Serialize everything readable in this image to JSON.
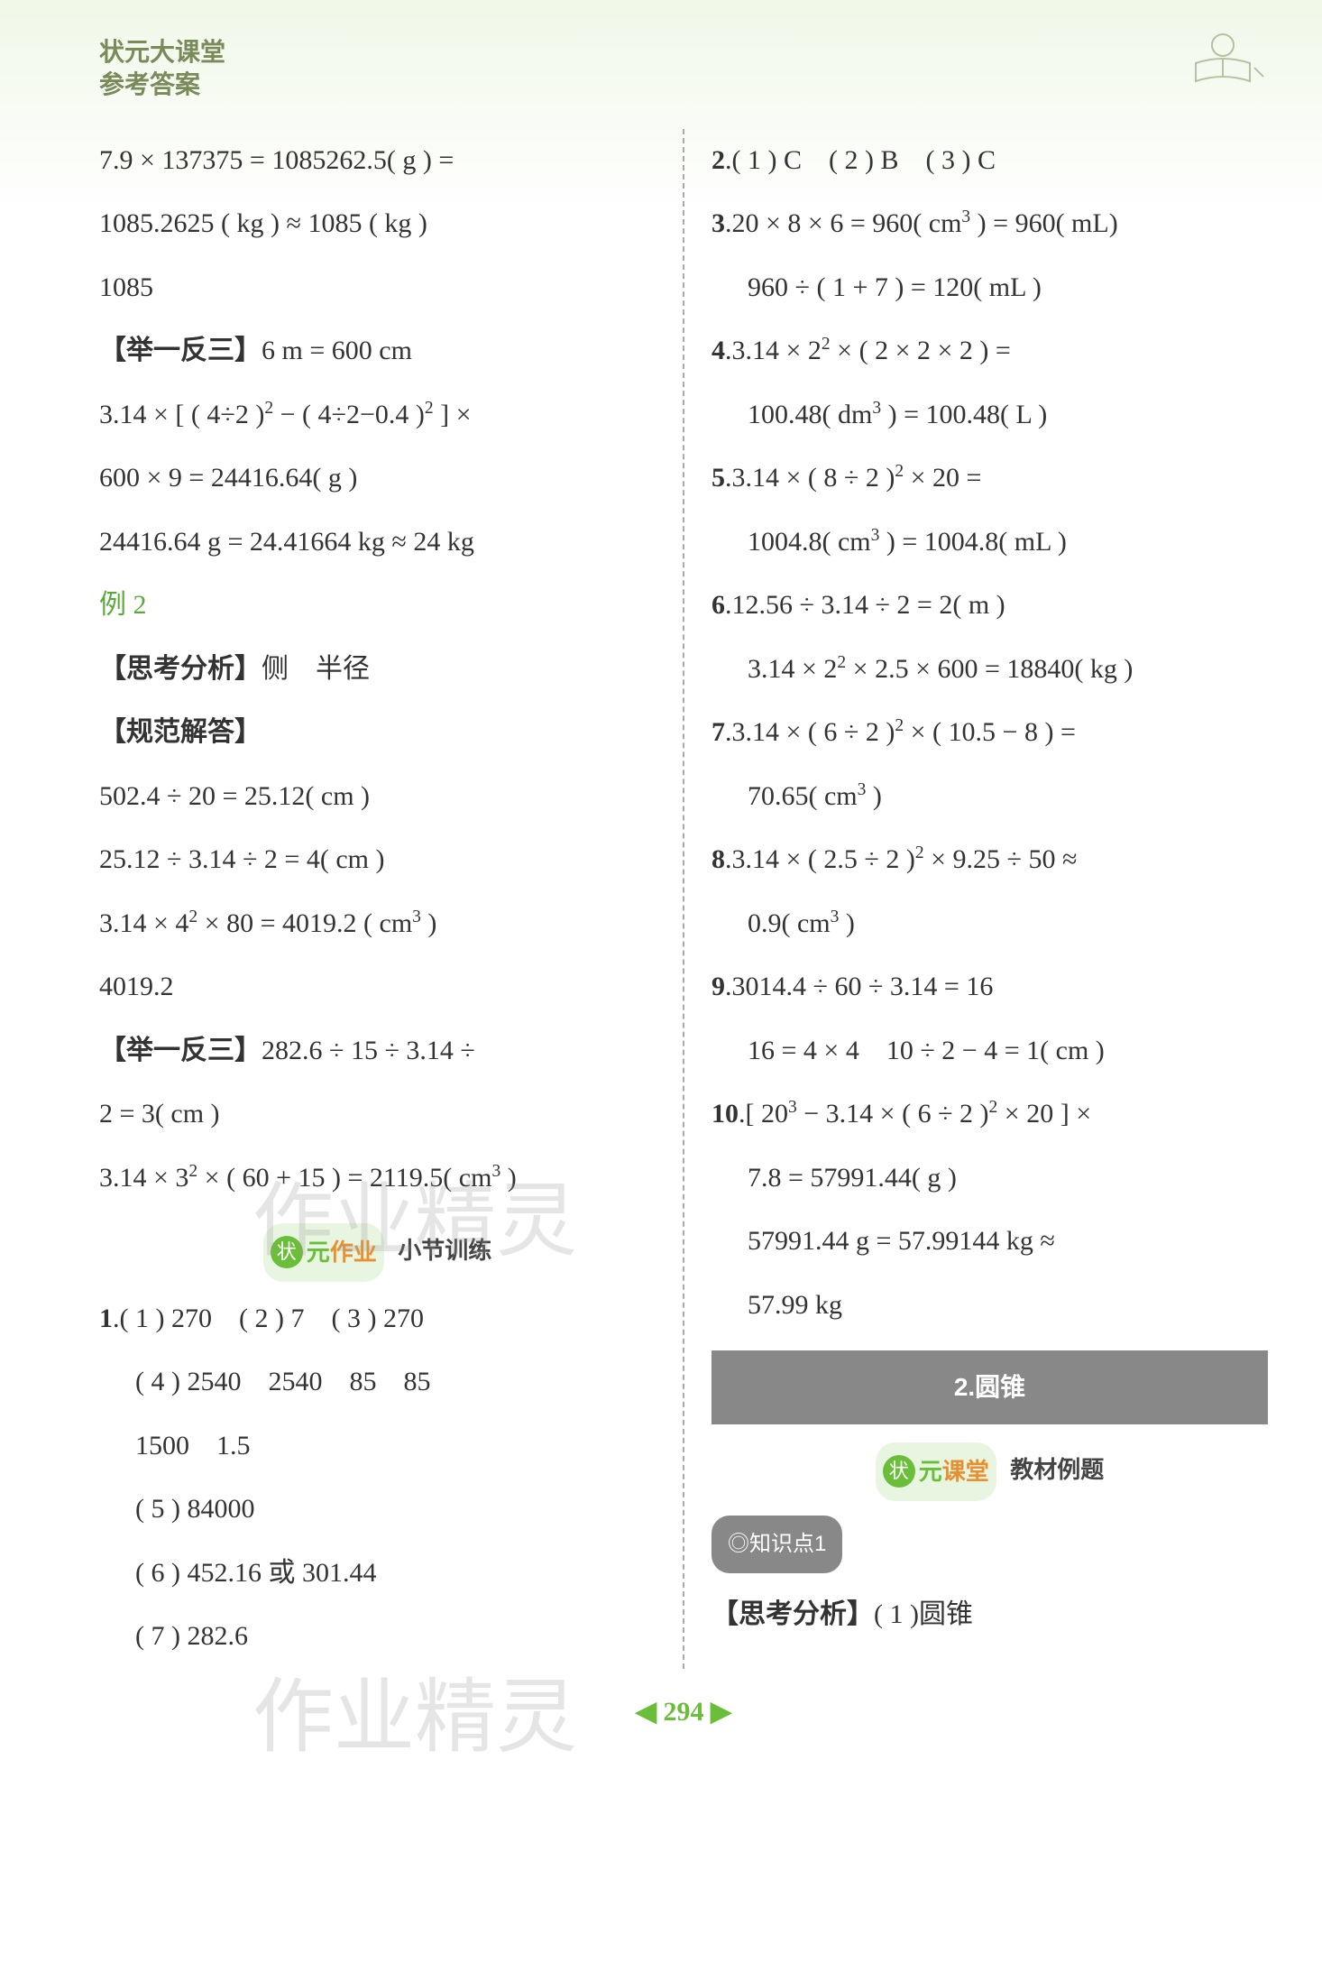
{
  "header": {
    "line1": "状元大课堂",
    "line2": "参考答案"
  },
  "watermark": "作业精灵",
  "left_column": {
    "lines": [
      {
        "html": "7.9 × 137375 = 1085262.5( g ) ="
      },
      {
        "html": "1085.2625 ( kg ) ≈ 1085 ( kg )"
      },
      {
        "html": "1085"
      },
      {
        "html": "<span class='bold-bracket'>【举一反三】</span>6 m = 600 cm"
      },
      {
        "html": "3.14 × [ ( 4÷2 )<sup>2</sup> − ( 4÷2−0.4 )<sup>2</sup> ] ×"
      },
      {
        "html": "600 × 9 = 24416.64( g )"
      },
      {
        "html": "24416.64 g = 24.41664 kg ≈ 24 kg"
      },
      {
        "html": "<span class='green-text'>例 2</span>"
      },
      {
        "html": "<span class='bold-bracket'>【思考分析】</span>侧　半径"
      },
      {
        "html": "<span class='bold-bracket'>【规范解答】</span>"
      },
      {
        "html": "502.4 ÷ 20 = 25.12( cm )"
      },
      {
        "html": "25.12 ÷ 3.14 ÷ 2 = 4( cm )"
      },
      {
        "html": "3.14 × 4<sup>2</sup> × 80 = 4019.2 ( cm<sup>3</sup> )"
      },
      {
        "html": "4019.2"
      },
      {
        "html": "<span class='bold-bracket'>【举一反三】</span>282.6 ÷ 15 ÷ 3.14 ÷"
      },
      {
        "html": "2 = 3( cm )"
      },
      {
        "html": "3.14 × 3<sup>2</sup> × ( 60 + 15 ) = 2119.5( cm<sup>3</sup> )"
      }
    ],
    "section": {
      "badge1": "状",
      "badge2": "元",
      "badge3": "作业",
      "label": "小节训练"
    },
    "answers": [
      {
        "html": "<b>1</b>.( 1 ) 270　( 2 ) 7　( 3 ) 270"
      },
      {
        "html": "( 4 ) 2540　2540　85　85",
        "indent": true
      },
      {
        "html": "1500　1.5",
        "indent": true
      },
      {
        "html": "( 5 ) 84000",
        "indent": true
      },
      {
        "html": "( 6 ) 452.16 或 301.44",
        "indent": true
      },
      {
        "html": "( 7 ) 282.6",
        "indent": true
      }
    ]
  },
  "right_column": {
    "lines": [
      {
        "html": "<b>2</b>.( 1 ) C　( 2 ) B　( 3 ) C"
      },
      {
        "html": "<b>3</b>.20 × 8 × 6 = 960( cm<sup>3</sup> ) = 960( mL)"
      },
      {
        "html": "960 ÷ ( 1 + 7 ) = 120( mL )",
        "indent": true
      },
      {
        "html": "<b>4</b>.3.14 × 2<sup>2</sup> × ( 2 × 2 × 2 ) ="
      },
      {
        "html": "100.48( dm<sup>3</sup> ) = 100.48( L )",
        "indent": true
      },
      {
        "html": "<b>5</b>.3.14 × ( 8 ÷ 2 )<sup>2</sup> × 20 ="
      },
      {
        "html": "1004.8( cm<sup>3</sup> ) = 1004.8( mL )",
        "indent": true
      },
      {
        "html": "<b>6</b>.12.56 ÷ 3.14 ÷ 2 = 2( m )"
      },
      {
        "html": "3.14 × 2<sup>2</sup> × 2.5 × 600 = 18840( kg )",
        "indent": true
      },
      {
        "html": "<b>7</b>.3.14 × ( 6 ÷ 2 )<sup>2</sup> × ( 10.5 − 8 ) ="
      },
      {
        "html": "70.65( cm<sup>3</sup> )",
        "indent": true
      },
      {
        "html": "<b>8</b>.3.14 × ( 2.5 ÷ 2 )<sup>2</sup> × 9.25 ÷ 50 ≈"
      },
      {
        "html": "0.9( cm<sup>3</sup> )",
        "indent": true
      },
      {
        "html": "<b>9</b>.3014.4 ÷ 60 ÷ 3.14 = 16"
      },
      {
        "html": "16 = 4 × 4　10 ÷ 2 − 4 = 1( cm )",
        "indent": true
      },
      {
        "html": "<b>10</b>.[ 20<sup>3</sup> − 3.14 × ( 6 ÷ 2 )<sup>2</sup> × 20 ] ×"
      },
      {
        "html": "7.8 = 57991.44( g )",
        "indent": true
      },
      {
        "html": "57991.44 g = 57.99144 kg ≈",
        "indent": true
      },
      {
        "html": "57.99 kg",
        "indent": true
      }
    ],
    "banner": "2.圆锥",
    "section": {
      "badge1": "状",
      "badge2": "元",
      "badge3": "课堂",
      "label": "教材例题"
    },
    "knowledge_point": "◎知识点1",
    "analysis": "<span class='bold-bracket'>【思考分析】</span>( 1 )圆锥"
  },
  "page_number": "294",
  "colors": {
    "green": "#6abe3a",
    "orange": "#e89030",
    "gray_banner": "#888888",
    "text": "#333333",
    "header_color": "#7a8a5a"
  },
  "typography": {
    "body_fontsize": 30,
    "header_fontsize": 28,
    "line_height": 2.35
  }
}
